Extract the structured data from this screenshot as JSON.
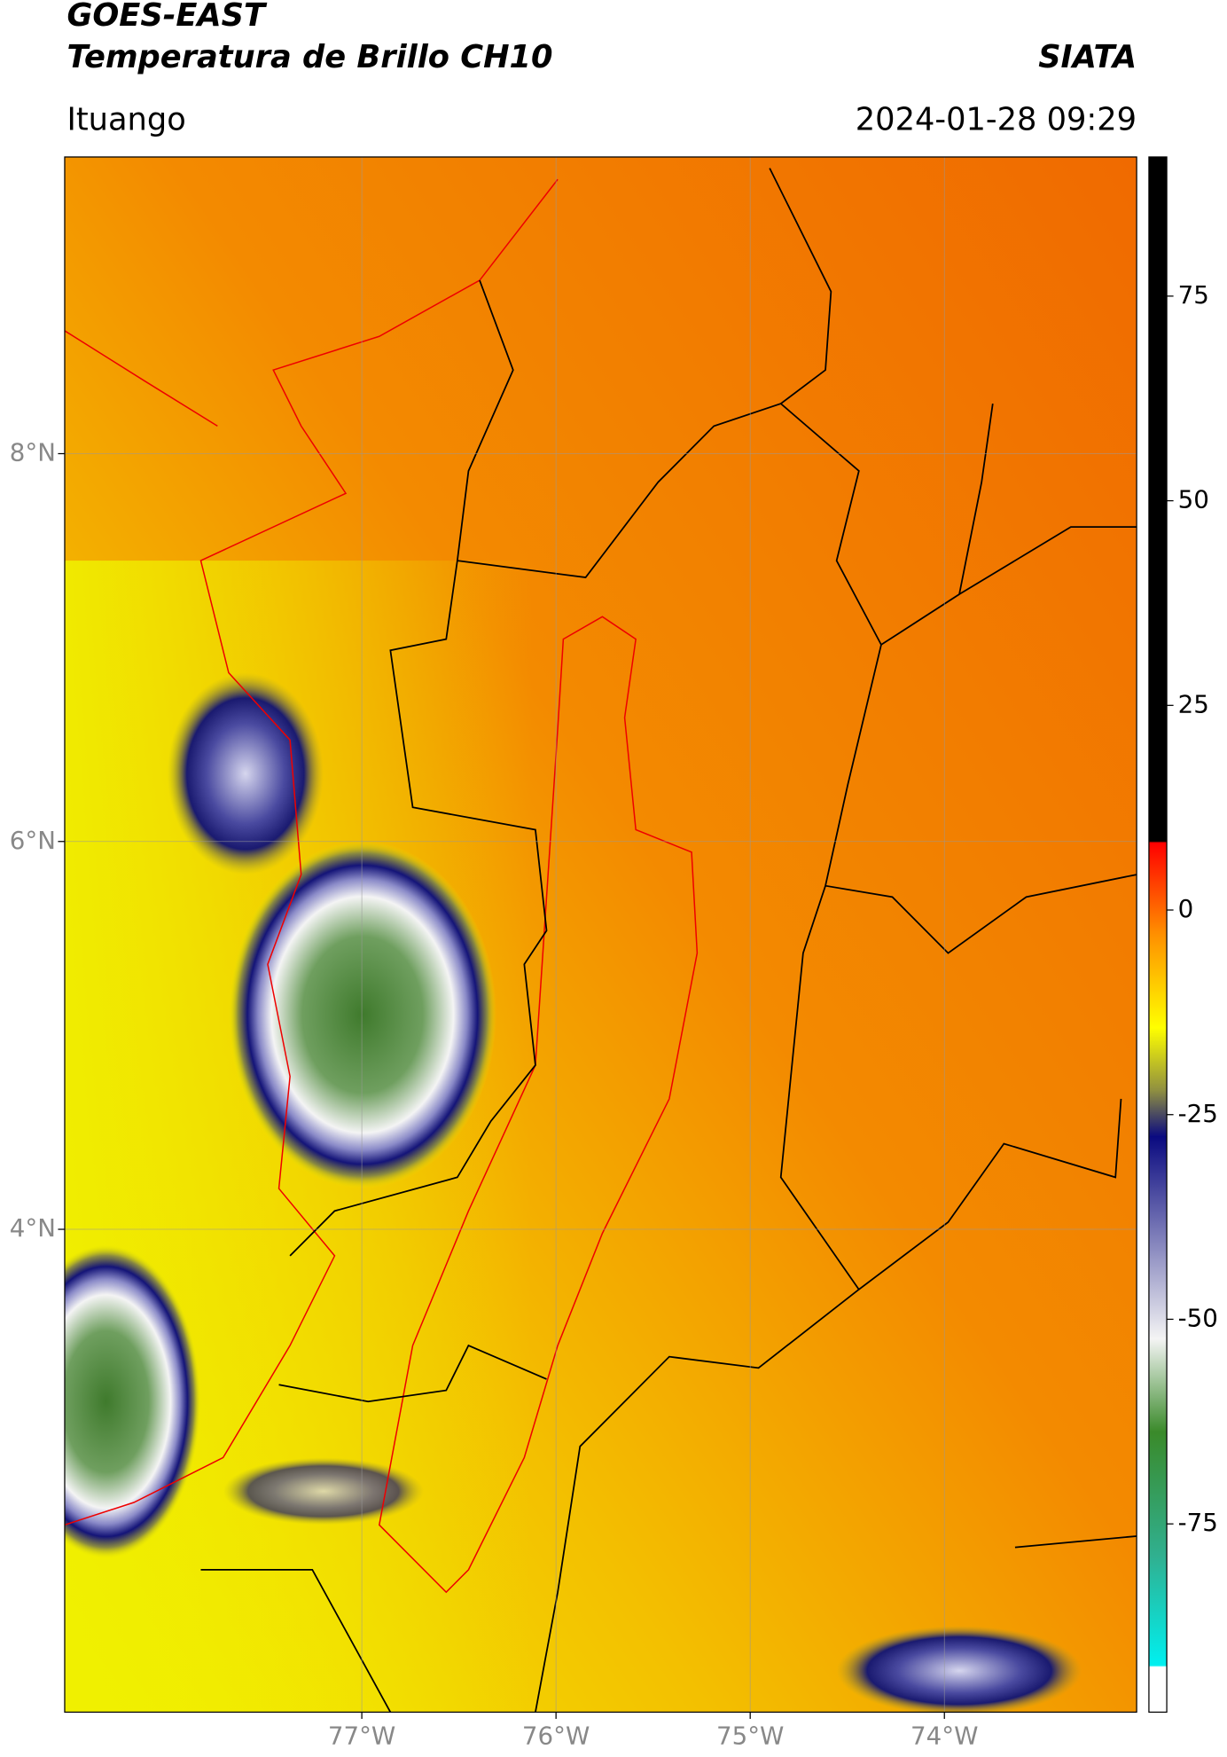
{
  "header": {
    "title_line1": "GOES-EAST",
    "title_line2": "Temperatura de Brillo CH10",
    "brand": "SIATA",
    "region": "Ituango",
    "datetime": "2024-01-28 09:29"
  },
  "map": {
    "xlim": [
      -78.53,
      -73.01
    ],
    "ylim": [
      1.51,
      9.53
    ],
    "lat_ticks": [
      {
        "value": 8,
        "label": "8°N"
      },
      {
        "value": 6,
        "label": "6°N"
      },
      {
        "value": 4,
        "label": "4°N"
      }
    ],
    "lon_ticks": [
      {
        "value": -77,
        "label": "77°W"
      },
      {
        "value": -76,
        "label": "76°W"
      },
      {
        "value": -75,
        "label": "75°W"
      },
      {
        "value": -74,
        "label": "74°W"
      }
    ]
  },
  "colorbar": {
    "lim": [
      -98,
      92
    ],
    "ticks": [
      75,
      50,
      25,
      0,
      -25,
      -50,
      -75
    ]
  }
}
